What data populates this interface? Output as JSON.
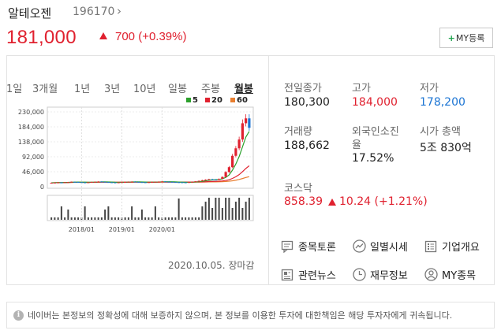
{
  "header": {
    "stock_name": "알테오젠",
    "stock_code": "196170",
    "price": "181,000",
    "change": "700 (+0.39%)",
    "my_button": "MY등록"
  },
  "chart": {
    "tabs": [
      "1일",
      "3개월",
      "1년",
      "3년",
      "10년",
      "일봉",
      "주봉",
      "월봉"
    ],
    "active_tab": "월봉",
    "legend": [
      {
        "label": "5",
        "color": "#2ca02c"
      },
      {
        "label": "20",
        "color": "#e0212f"
      },
      {
        "label": "60",
        "color": "#e87e2f"
      }
    ],
    "date_label": "2020.10.05. 장마감"
  },
  "chart_data": {
    "type": "candlestick",
    "y_ticks": [
      "230,000",
      "184,000",
      "138,000",
      "92,000",
      "46,000",
      "0"
    ],
    "x_ticks": [
      "2018/01",
      "2019/01",
      "2020/01"
    ],
    "ylim": [
      0,
      230000
    ],
    "close": [
      12000,
      12500,
      13000,
      12800,
      13500,
      14000,
      15000,
      14500,
      13800,
      13200,
      12800,
      13500,
      14500,
      15000,
      15800,
      15000,
      14200,
      13500,
      13000,
      12500,
      13200,
      14000,
      14500,
      15200,
      15500,
      14800,
      14000,
      13500,
      13000,
      13800,
      14500,
      15000,
      15500,
      16000,
      15200,
      14800,
      14200,
      13800,
      13500,
      13200,
      13000,
      14000,
      15000,
      16500,
      18000,
      20000,
      21500,
      23000,
      22000,
      21500,
      24000,
      30000,
      45000,
      60000,
      95000,
      118000,
      145000,
      195000,
      210000,
      181000
    ],
    "ma_colors": {
      "ma5": "#2ca02c",
      "ma20": "#e0212f",
      "ma60": "#e87e2f"
    }
  },
  "stats": {
    "prev_close_label": "전일종가",
    "prev_close": "180,300",
    "high_label": "고가",
    "high": "184,000",
    "low_label": "저가",
    "low": "178,200",
    "volume_label": "거래량",
    "volume": "188,662",
    "foreign_label_1": "외국인소진",
    "foreign_label_2": "율",
    "foreign": "17.52%",
    "mcap_label": "시가 총액",
    "mcap": "5조 830억",
    "kosdaq_label": "코스닥",
    "kosdaq": "858.39",
    "kosdaq_change": "10.24 (+1.21%)"
  },
  "menu": {
    "discussion": "종목토론",
    "daily": "일별시세",
    "company": "기업개요",
    "news": "관련뉴스",
    "finance": "재무정보",
    "my_stock": "MY종목"
  },
  "notice": "네이버는 본정보의 정확성에 대해 보증하지 않으며, 본 정보를 이용한 투자에 대한책임은 해당 투자자에게 귀속됩니다."
}
